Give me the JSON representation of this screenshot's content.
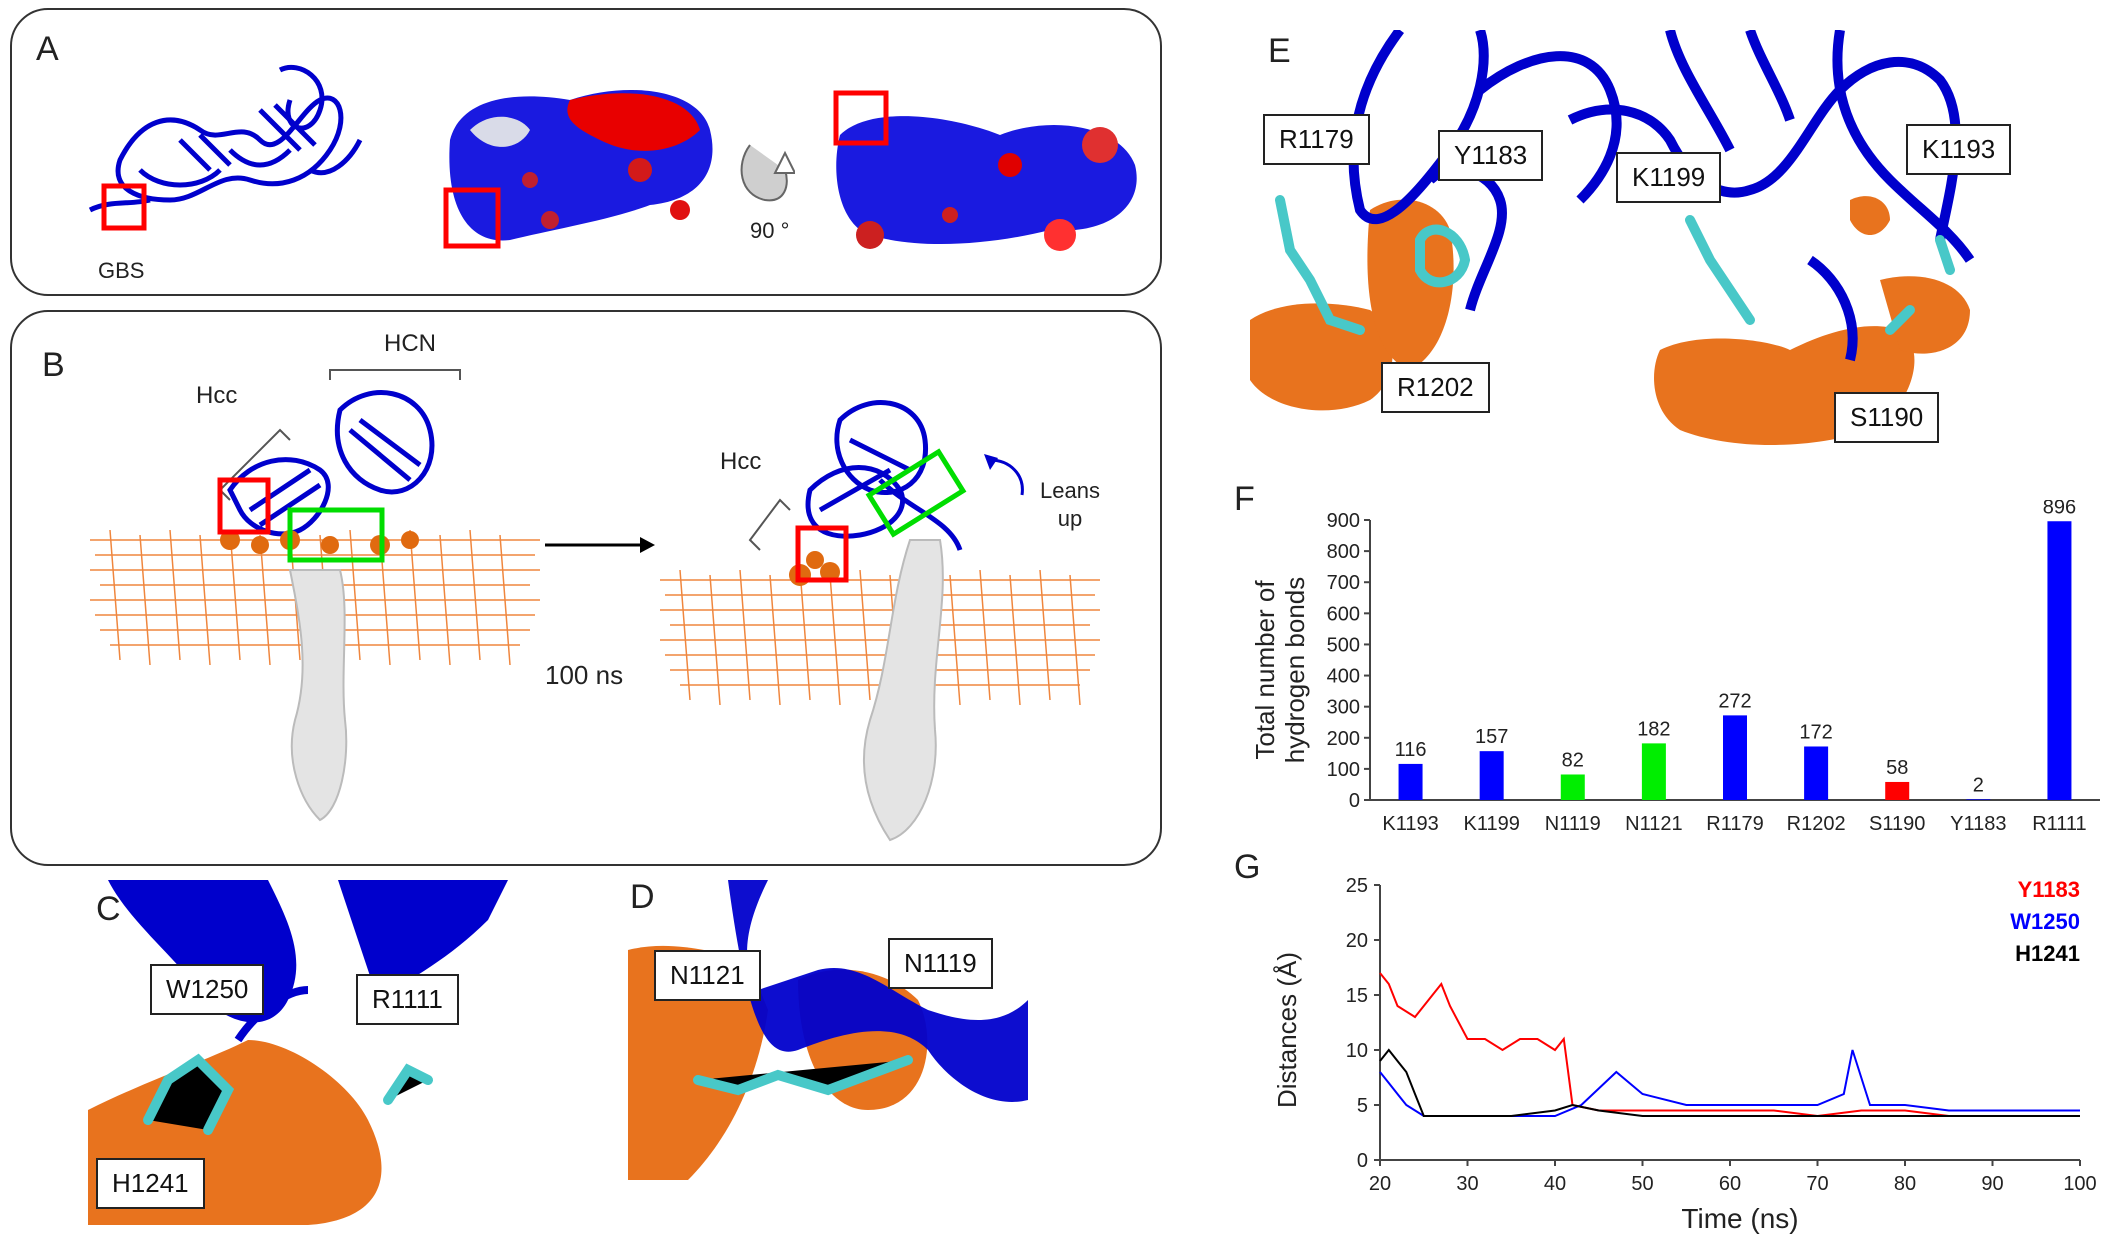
{
  "figure": {
    "panel_letters": {
      "a": "A",
      "b": "B",
      "c": "C",
      "d": "D",
      "e": "E",
      "f": "F",
      "g": "G"
    },
    "panel_a": {
      "gbs_label": "GBS",
      "rotation_label": "90 °"
    },
    "panel_b": {
      "hcc_label": "Hcc",
      "hcn_label": "HCN",
      "hcc_label_right": "Hcc",
      "time_label": "100 ns",
      "leans_up_label": "Leans up"
    },
    "panel_c": {
      "labels": [
        "W1250",
        "R1111",
        "H1241"
      ]
    },
    "panel_d": {
      "labels": [
        "N1121",
        "N1119"
      ]
    },
    "panel_e": {
      "labels": [
        "R1179",
        "Y1183",
        "K1199",
        "K1193",
        "R1202",
        "S1190"
      ]
    },
    "colors": {
      "protein_blue": "#0000cc",
      "membrane_orange": "#e8731e",
      "red": "#ff0000",
      "green": "#00dd00",
      "grey": "#d8d8d8",
      "cyan": "#48c8c8"
    }
  },
  "chart_data": [
    {
      "type": "bar",
      "panel": "F",
      "ylabel_line1": "Total number of",
      "ylabel_line2": "hydrogen bonds",
      "categories": [
        "K1193",
        "K1199",
        "N1119",
        "N1121",
        "R1179",
        "R1202",
        "S1190",
        "Y1183",
        "R1111"
      ],
      "values": [
        116,
        157,
        82,
        182,
        272,
        172,
        58,
        2,
        896
      ],
      "value_labels": [
        "116",
        "157",
        "82",
        "182",
        "272",
        "172",
        "58",
        "2",
        "896"
      ],
      "bar_colors": [
        "#0000ff",
        "#0000ff",
        "#00ee00",
        "#00ee00",
        "#0000ff",
        "#0000ff",
        "#ff0000",
        "#0000ff",
        "#0000ff"
      ],
      "ylim": [
        0,
        900
      ],
      "yticks": [
        "0",
        "100",
        "200",
        "300",
        "400",
        "500",
        "600",
        "700",
        "800",
        "900"
      ],
      "grid": false
    },
    {
      "type": "line",
      "panel": "G",
      "xlabel": "Time (ns)",
      "ylabel": "Distances (Å)",
      "xlim": [
        20,
        100
      ],
      "ylim": [
        0,
        25
      ],
      "xticks": [
        "20",
        "30",
        "40",
        "50",
        "60",
        "70",
        "80",
        "90",
        "100"
      ],
      "yticks": [
        "0",
        "5",
        "10",
        "15",
        "20",
        "25"
      ],
      "legend_position": "top-right",
      "series": [
        {
          "name": "Y1183",
          "color": "#ff0000",
          "x": [
            20,
            21,
            22,
            24,
            26,
            27,
            28,
            30,
            32,
            34,
            36,
            38,
            40,
            41,
            42,
            45,
            50,
            55,
            60,
            65,
            70,
            75,
            80,
            85,
            90,
            95,
            100
          ],
          "y": [
            17,
            16,
            14,
            13,
            15,
            16,
            14,
            11,
            11,
            10,
            11,
            11,
            10,
            11,
            5,
            4.5,
            4.5,
            4.5,
            4.5,
            4.5,
            4,
            4.5,
            4.5,
            4,
            4,
            4,
            4
          ]
        },
        {
          "name": "W1250",
          "color": "#0000ff",
          "x": [
            20,
            21,
            22,
            23,
            25,
            30,
            35,
            40,
            43,
            45,
            47,
            50,
            55,
            60,
            65,
            70,
            73,
            74,
            76,
            80,
            85,
            90,
            95,
            100
          ],
          "y": [
            8,
            7,
            6,
            5,
            4,
            4,
            4,
            4,
            5,
            6.5,
            8,
            6,
            5,
            5,
            5,
            5,
            6,
            10,
            5,
            5,
            4.5,
            4.5,
            4.5,
            4.5
          ]
        },
        {
          "name": "H1241",
          "color": "#000000",
          "x": [
            20,
            21,
            22,
            23,
            24,
            25,
            30,
            35,
            40,
            42,
            45,
            50,
            55,
            60,
            65,
            70,
            75,
            80,
            85,
            90,
            95,
            100
          ],
          "y": [
            9,
            10,
            9,
            8,
            6,
            4,
            4,
            4,
            4.5,
            5,
            4.5,
            4,
            4,
            4,
            4,
            4,
            4,
            4,
            4,
            4,
            4,
            4
          ]
        }
      ]
    }
  ]
}
